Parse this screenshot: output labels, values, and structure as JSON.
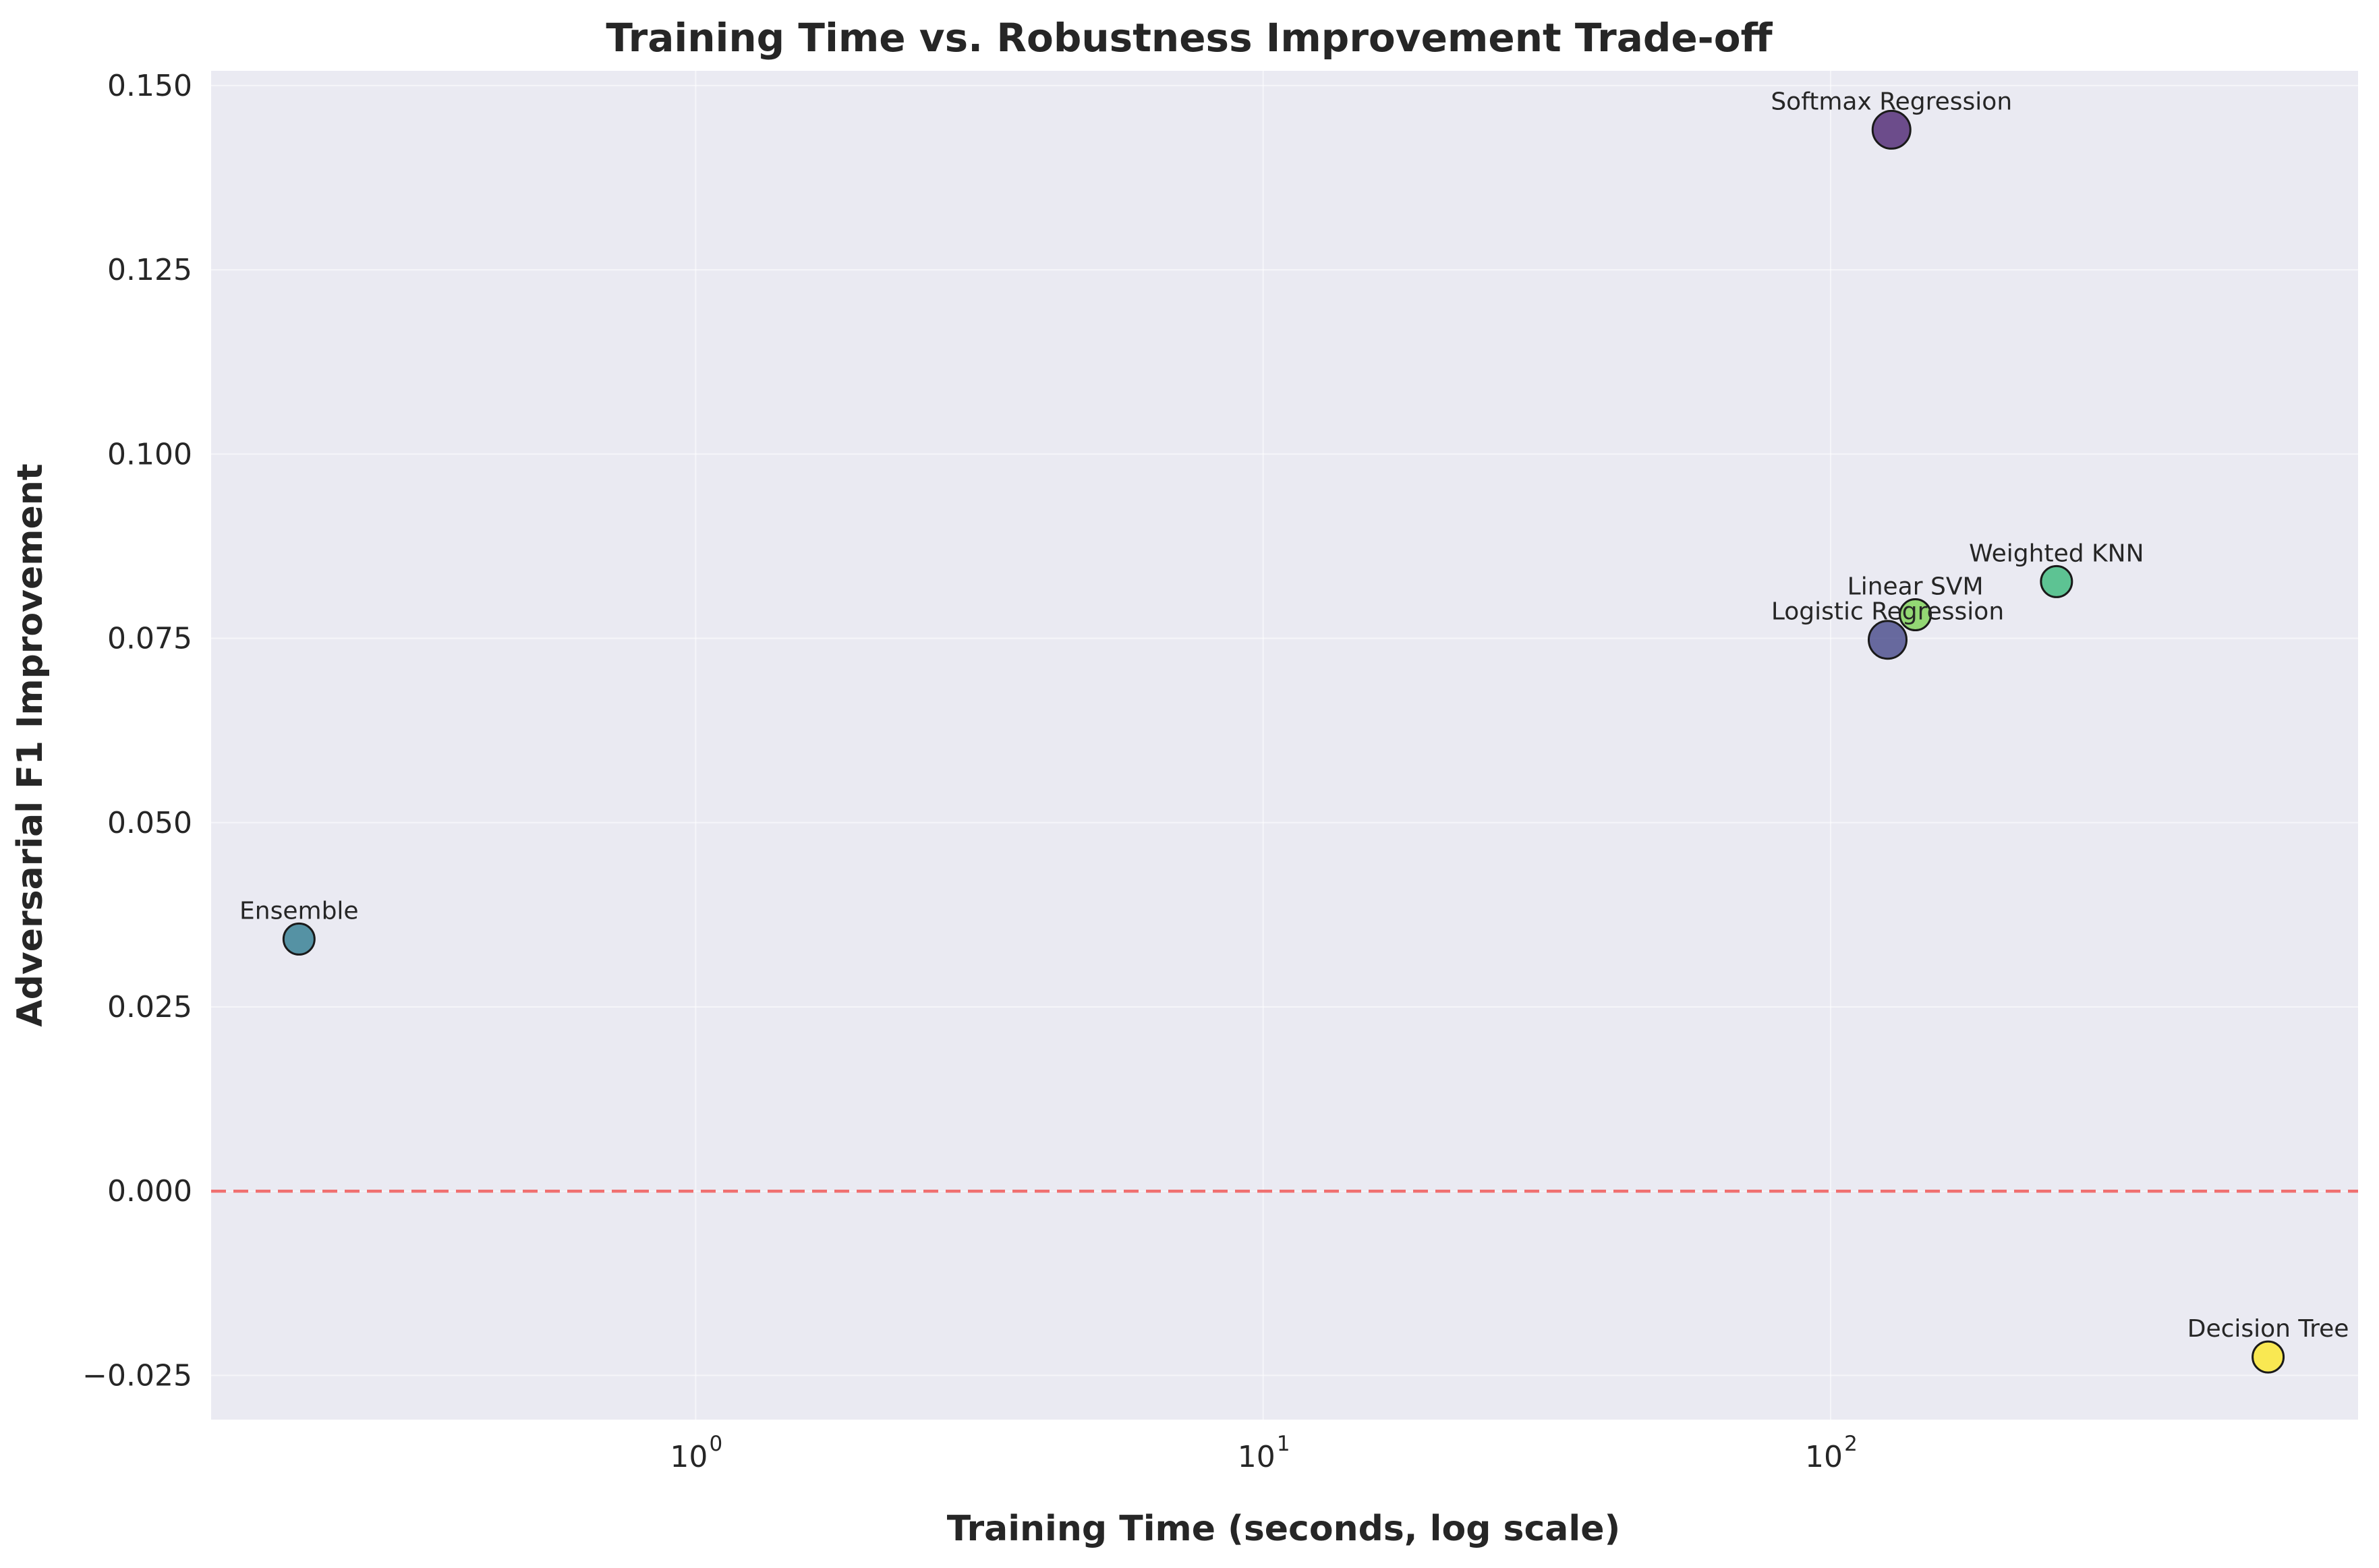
{
  "chart_data": {
    "type": "scatter",
    "title": "Training Time vs. Robustness Improvement Trade-off",
    "xlabel": "Training Time (seconds, log scale)",
    "ylabel": "Adversarial F1 Improvement",
    "xscale": "log",
    "xlim": [
      0.14,
      850
    ],
    "ylim": [
      -0.031,
      0.152
    ],
    "xticks": [
      {
        "base": "10",
        "exp": "0",
        "value": 1
      },
      {
        "base": "10",
        "exp": "1",
        "value": 10
      },
      {
        "base": "10",
        "exp": "2",
        "value": 100
      }
    ],
    "yticks": [
      {
        "label": "0.150",
        "value": 0.15
      },
      {
        "label": "0.125",
        "value": 0.125
      },
      {
        "label": "0.100",
        "value": 0.1
      },
      {
        "label": "0.075",
        "value": 0.075
      },
      {
        "label": "0.050",
        "value": 0.05
      },
      {
        "label": "0.025",
        "value": 0.025
      },
      {
        "label": "0.000",
        "value": 0.0
      },
      {
        "label": "−0.025",
        "value": -0.025
      }
    ],
    "grid": true,
    "reference_line": {
      "y": 0.0,
      "style": "dashed",
      "color": "#f07070"
    },
    "points": [
      {
        "label": "Softmax Regression",
        "x": 128,
        "y": 0.144,
        "color": "#481f6e",
        "size": "large"
      },
      {
        "label": "Weighted KNN",
        "x": 250,
        "y": 0.0827,
        "color": "#35b779",
        "size": "medium"
      },
      {
        "label": "Linear SVM",
        "x": 141,
        "y": 0.0782,
        "color": "#7ad151",
        "size": "medium"
      },
      {
        "label": "Logistic Regression",
        "x": 126,
        "y": 0.0748,
        "color": "#414487",
        "size": "large"
      },
      {
        "label": "Ensemble",
        "x": 0.2,
        "y": 0.0342,
        "color": "#2a788e",
        "size": "medium"
      },
      {
        "label": "Decision Tree",
        "x": 590,
        "y": -0.0225,
        "color": "#fde725",
        "size": "medium"
      }
    ]
  }
}
